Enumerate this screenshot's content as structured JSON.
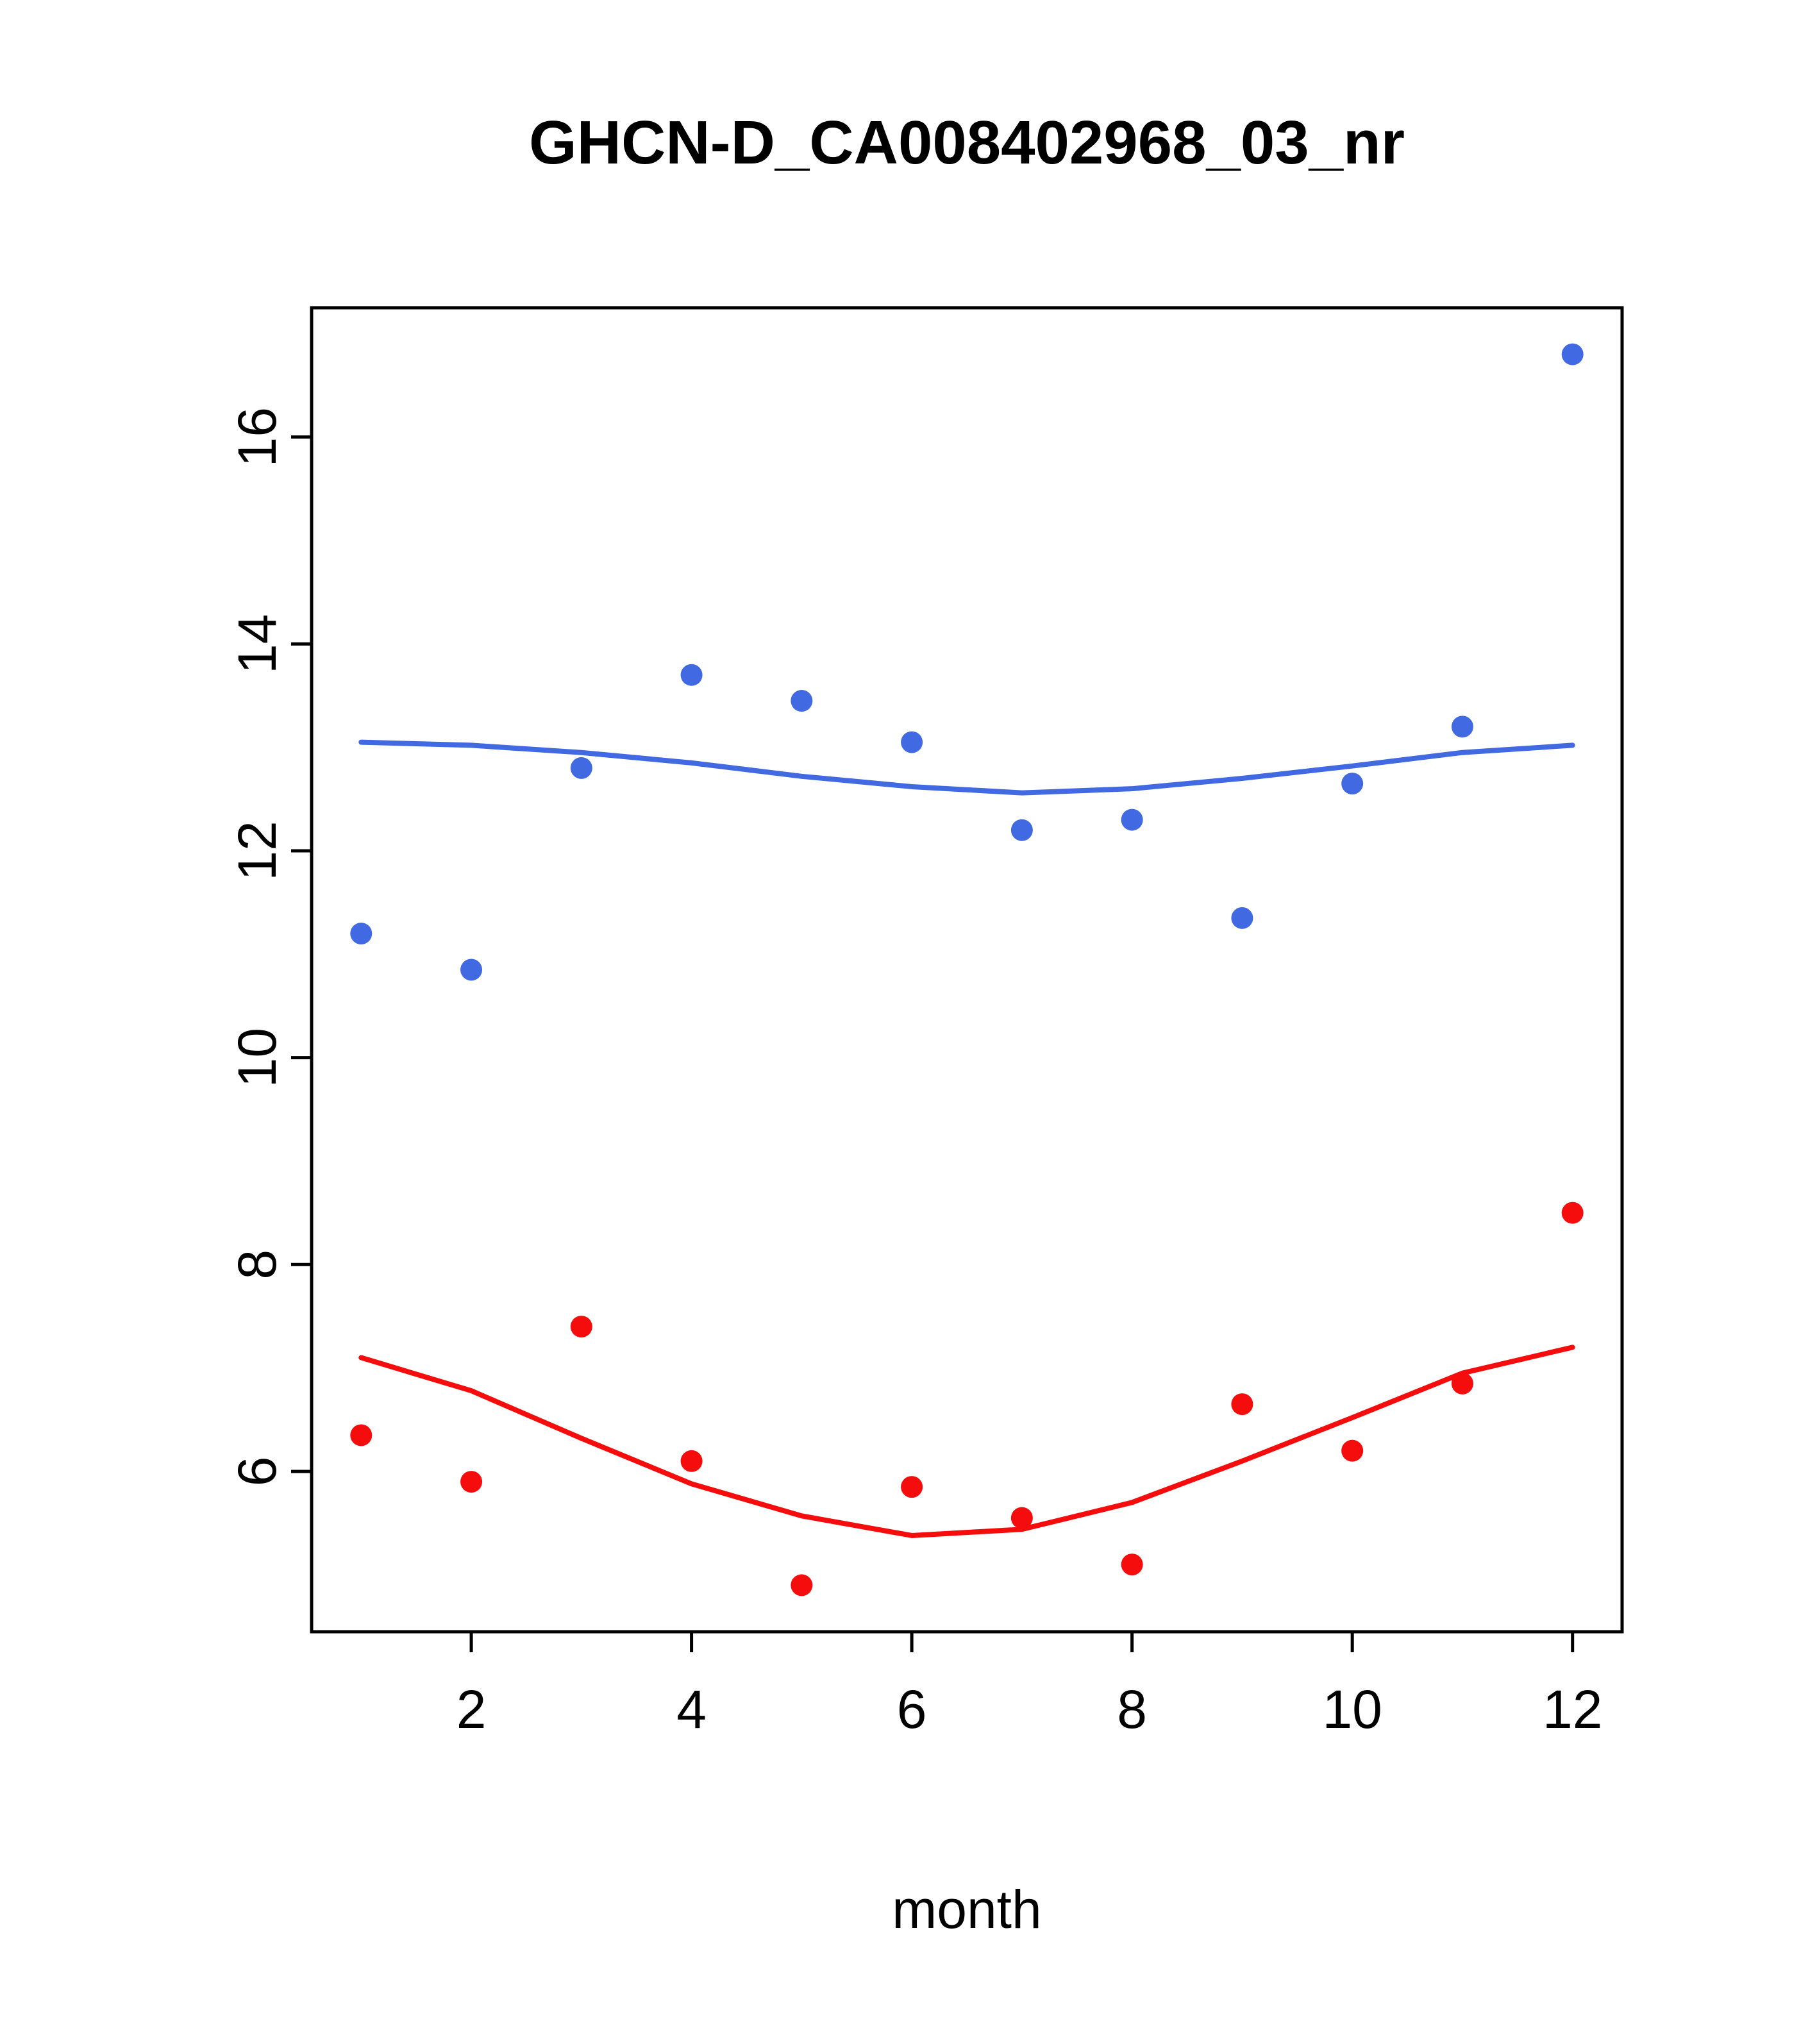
{
  "chart_data": {
    "type": "scatter",
    "title": "GHCN-D_CA008402968_03_nr",
    "xlabel": "month",
    "ylabel": "",
    "x": [
      1,
      2,
      3,
      4,
      5,
      6,
      7,
      8,
      9,
      10,
      11,
      12
    ],
    "xticks": [
      2,
      4,
      6,
      8,
      10,
      12
    ],
    "yticks": [
      6,
      8,
      10,
      12,
      14,
      16
    ],
    "xlim": [
      0.55,
      12.45
    ],
    "ylim": [
      4.45,
      17.25
    ],
    "grid": false,
    "legend": "none",
    "colors": {
      "blue": "#4169E1",
      "red": "#F50D0D",
      "axis": "#000000"
    },
    "series": [
      {
        "name": "blue-points",
        "kind": "points",
        "color": "#4169E1",
        "values": [
          11.2,
          10.85,
          12.8,
          13.7,
          13.45,
          13.05,
          12.2,
          12.3,
          11.35,
          12.65,
          13.2,
          16.8
        ]
      },
      {
        "name": "blue-smooth-line",
        "kind": "line",
        "color": "#4169E1",
        "values": [
          13.05,
          13.02,
          12.95,
          12.85,
          12.72,
          12.62,
          12.56,
          12.6,
          12.7,
          12.82,
          12.95,
          13.02
        ]
      },
      {
        "name": "red-points",
        "kind": "points",
        "color": "#F50D0D",
        "values": [
          6.35,
          5.9,
          7.4,
          6.1,
          4.9,
          5.85,
          5.55,
          5.1,
          6.65,
          6.2,
          6.85,
          8.5
        ]
      },
      {
        "name": "red-smooth-line",
        "kind": "line",
        "color": "#F50D0D",
        "values": [
          7.1,
          6.78,
          6.32,
          5.88,
          5.57,
          5.38,
          5.44,
          5.7,
          6.1,
          6.52,
          6.95,
          7.2
        ]
      }
    ]
  }
}
